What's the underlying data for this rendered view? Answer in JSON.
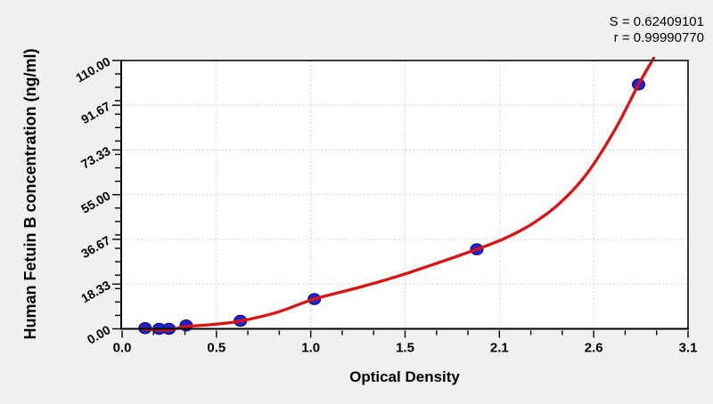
{
  "window": {
    "background_color": "#f0f0f0"
  },
  "chart_data": {
    "type": "scatter",
    "title": "",
    "xlabel": "Optical Density",
    "ylabel": "Human Fetuin B concentration (ng/ml)",
    "stats": {
      "s_text": "S = 0.62409101",
      "r_text": "r = 0.99990770"
    },
    "xlim": [
      0,
      3.1
    ],
    "ylim": [
      0,
      110
    ],
    "x_ticks": {
      "values": [
        0,
        0.516667,
        1.033333,
        1.55,
        2.066667,
        2.583333,
        3.1
      ],
      "labels": [
        "0.0",
        "0.5",
        "1.0",
        "1.5",
        "2.1",
        "2.6",
        "3.1"
      ]
    },
    "y_ticks": {
      "values": [
        0,
        18.3333,
        36.6667,
        55,
        73.3333,
        91.6667,
        110
      ],
      "labels": [
        "0.00",
        "18.33",
        "36.67",
        "55.00",
        "73.33",
        "91.67",
        "110.00"
      ]
    },
    "x_minor_step": 0.172222,
    "y_minor_step": 5.5,
    "grid": {
      "style": "dotted",
      "at_major_ticks": true
    },
    "legend": null,
    "series": [
      {
        "name": "standard-points",
        "type": "scatter",
        "marker": "ellipse",
        "points": [
          {
            "od": 0.126,
            "conc": 0.3
          },
          {
            "od": 0.203,
            "conc": 0.0
          },
          {
            "od": 0.257,
            "conc": 0.0
          },
          {
            "od": 0.351,
            "conc": 1.4
          },
          {
            "od": 0.648,
            "conc": 3.3
          },
          {
            "od": 1.053,
            "conc": 12.2
          },
          {
            "od": 1.943,
            "conc": 32.6
          },
          {
            "od": 2.829,
            "conc": 100.2
          }
        ]
      },
      {
        "name": "fitted-curve",
        "type": "line",
        "points": [
          [
            0.112,
            -0.1
          ],
          [
            0.203,
            -0.45
          ],
          [
            0.257,
            -0.45
          ],
          [
            0.351,
            0.9
          ],
          [
            0.5,
            1.8
          ],
          [
            0.648,
            3.2
          ],
          [
            0.85,
            6.8
          ],
          [
            1.053,
            12.2
          ],
          [
            1.3,
            17.0
          ],
          [
            1.5,
            21.3
          ],
          [
            1.69,
            26.0
          ],
          [
            1.943,
            32.6
          ],
          [
            2.1,
            37.2
          ],
          [
            2.25,
            43.2
          ],
          [
            2.4,
            51.7
          ],
          [
            2.55,
            64.0
          ],
          [
            2.7,
            81.7
          ],
          [
            2.829,
            100.2
          ],
          [
            2.912,
            111.0
          ]
        ]
      }
    ],
    "colors": {
      "curve": "#dd1111",
      "point_fill": "#2121cd",
      "point_edge": "#000080",
      "background": "#f0f0f0",
      "plot_background": "#ffffff",
      "grid": "#c9c9c9",
      "frame": "#3a3a3a",
      "axis": "#000000",
      "text": "#000000"
    }
  }
}
